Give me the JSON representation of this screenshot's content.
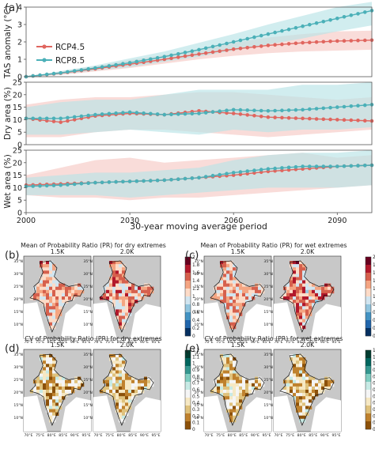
{
  "panel_labels": [
    "(a)",
    "(b)",
    "(c)",
    "(d)",
    "(e)"
  ],
  "legend": {
    "items": [
      "RCP4.5",
      "RCP8.5"
    ]
  },
  "colors": {
    "rcp45": "#e0665f",
    "rcp85": "#4bb0b8",
    "rcp45_band": "#f6c9c4",
    "rcp85_band": "#b9e3e6",
    "map_bg": "#c8c8c8",
    "ocean": "#ffffff"
  },
  "chart_data": [
    {
      "type": "line",
      "ylabel": "TAS anomaly (°C)",
      "xlabel": "30-year moving average period",
      "xlim": [
        2000,
        2100
      ],
      "ylim": [
        0,
        4
      ],
      "yticks": [
        "0",
        "1",
        "2",
        "3",
        "4"
      ],
      "xticks": [
        "2000",
        "2030",
        "2060",
        "2090"
      ],
      "series": [
        {
          "name": "RCP4.5",
          "x": [
            2000,
            2010,
            2020,
            2030,
            2040,
            2050,
            2060,
            2070,
            2080,
            2090,
            2100
          ],
          "values": [
            0.0,
            0.2,
            0.45,
            0.72,
            1.0,
            1.3,
            1.58,
            1.8,
            1.95,
            2.05,
            2.1
          ],
          "band_low": [
            0.0,
            0.1,
            0.3,
            0.5,
            0.75,
            1.0,
            1.2,
            1.35,
            1.45,
            1.5,
            1.55
          ],
          "band_high": [
            0.0,
            0.3,
            0.6,
            0.95,
            1.25,
            1.6,
            1.95,
            2.25,
            2.45,
            2.6,
            2.65
          ]
        },
        {
          "name": "RCP8.5",
          "x": [
            2000,
            2010,
            2020,
            2030,
            2040,
            2050,
            2060,
            2070,
            2080,
            2090,
            2100
          ],
          "values": [
            0.0,
            0.22,
            0.5,
            0.8,
            1.15,
            1.55,
            2.0,
            2.45,
            2.9,
            3.35,
            3.8
          ],
          "band_low": [
            0.0,
            0.12,
            0.35,
            0.55,
            0.85,
            1.15,
            1.5,
            1.85,
            2.2,
            2.6,
            2.95
          ],
          "band_high": [
            0.0,
            0.32,
            0.65,
            1.05,
            1.45,
            1.95,
            2.45,
            3.0,
            3.5,
            4.0,
            4.3
          ]
        }
      ]
    },
    {
      "type": "line",
      "ylabel": "Dry area (%)",
      "xlim": [
        2000,
        2100
      ],
      "ylim": [
        0,
        25
      ],
      "yticks": [
        "0",
        "5",
        "10",
        "15",
        "20",
        "25"
      ],
      "series": [
        {
          "name": "RCP4.5",
          "x": [
            2000,
            2010,
            2020,
            2030,
            2040,
            2050,
            2060,
            2070,
            2080,
            2090,
            2100
          ],
          "values": [
            10.5,
            9.0,
            11.5,
            12.5,
            12.0,
            13.5,
            12.5,
            11.0,
            10.5,
            10.0,
            9.5
          ],
          "band_low": [
            3,
            3,
            5,
            6,
            6,
            5,
            4,
            3,
            4,
            5,
            6
          ],
          "band_high": [
            16,
            18,
            19,
            19,
            20,
            21,
            21,
            20,
            19,
            18,
            19
          ]
        },
        {
          "name": "RCP8.5",
          "x": [
            2000,
            2010,
            2020,
            2030,
            2040,
            2050,
            2060,
            2070,
            2080,
            2090,
            2100
          ],
          "values": [
            10.5,
            10.5,
            12.0,
            13.0,
            12.0,
            12.5,
            14.0,
            13.5,
            14.0,
            15.0,
            16.0
          ],
          "band_low": [
            4,
            4,
            5,
            6,
            5,
            4,
            6,
            5,
            6,
            6,
            7
          ],
          "band_high": [
            15,
            17,
            18,
            18,
            20,
            22,
            22,
            22,
            24,
            24,
            25
          ]
        }
      ]
    },
    {
      "type": "line",
      "ylabel": "Wet area (%)",
      "xlim": [
        2000,
        2100
      ],
      "ylim": [
        0,
        25
      ],
      "yticks": [
        "0",
        "5",
        "10",
        "15",
        "20",
        "25"
      ],
      "series": [
        {
          "name": "RCP4.5",
          "x": [
            2000,
            2010,
            2020,
            2030,
            2040,
            2050,
            2060,
            2070,
            2080,
            2090,
            2100
          ],
          "values": [
            11.0,
            11.5,
            12.0,
            12.5,
            13.0,
            14.0,
            15.0,
            16.5,
            17.5,
            18.5,
            19.0
          ],
          "band_low": [
            7,
            6,
            6,
            5,
            6,
            6,
            7,
            8,
            9,
            10,
            11
          ],
          "band_high": [
            15,
            18,
            21,
            22,
            20,
            21,
            22,
            23,
            24,
            22,
            23
          ]
        },
        {
          "name": "RCP8.5",
          "x": [
            2000,
            2010,
            2020,
            2030,
            2040,
            2050,
            2060,
            2070,
            2080,
            2090,
            2100
          ],
          "values": [
            10.5,
            11.0,
            12.0,
            12.5,
            13.0,
            14.0,
            16.0,
            17.5,
            18.5,
            18.5,
            19.0
          ],
          "band_low": [
            7,
            7,
            7,
            6,
            7,
            8,
            9,
            10,
            10,
            10,
            11
          ],
          "band_high": [
            14,
            15,
            16,
            16,
            17,
            18,
            21,
            23,
            24,
            24,
            25
          ]
        }
      ]
    }
  ],
  "map_rows": [
    {
      "label": "(b)",
      "title": "Mean of Probability Ratio (PR) for dry extremes",
      "maps": [
        {
          "subtitle": "1.5K",
          "metric": "mean",
          "intensity": 0.55
        },
        {
          "subtitle": "2.0K",
          "metric": "mean",
          "intensity": 0.7
        }
      ],
      "colorbar": {
        "ticks": [
          "2",
          "1.8",
          "1.6",
          "1.4",
          "1.2",
          "1",
          "0.8",
          "0.6",
          "0.4",
          "0.2",
          "0"
        ],
        "palette": "diverging"
      }
    },
    {
      "label": "(c)",
      "title": "Mean of Probability Ratio (PR) for wet extremes",
      "maps": [
        {
          "subtitle": "1.5K",
          "metric": "mean",
          "intensity": 0.6
        },
        {
          "subtitle": "2.0K",
          "metric": "mean",
          "intensity": 0.75
        }
      ],
      "colorbar": {
        "ticks": [
          "2",
          "1.8",
          "1.6",
          "1.4",
          "1.2",
          "1",
          "0.8",
          "0.6",
          "0.4",
          "0.2",
          "0"
        ],
        "palette": "diverging"
      }
    },
    {
      "label": "(d)",
      "title": "CV of Probability Ratio (PR) for dry extremes",
      "maps": [
        {
          "subtitle": "1.5K",
          "metric": "cv",
          "intensity": 0.55
        },
        {
          "subtitle": "2.0K",
          "metric": "cv",
          "intensity": 0.3
        }
      ],
      "colorbar": {
        "ticks": [
          "1.2",
          "1.1",
          "1",
          "0.9",
          "0.8",
          "0.7",
          "0.6",
          "0.5",
          "0.4",
          "0.3",
          "0.2",
          "0.1",
          "0"
        ],
        "palette": "brbg"
      }
    },
    {
      "label": "(e)",
      "title": "CV of Probability Ratio (PR) for wet extremes",
      "maps": [
        {
          "subtitle": "1.5K",
          "metric": "cv",
          "intensity": 0.35
        },
        {
          "subtitle": "2.0K",
          "metric": "cv",
          "intensity": 0.3
        }
      ],
      "colorbar": {
        "ticks": [
          "1.2",
          "1.1",
          "1",
          "0.9",
          "0.8",
          "0.7",
          "0.6",
          "0.5",
          "0.4",
          "0.3",
          "0.2",
          "0.1",
          "0"
        ],
        "palette": "brbg"
      }
    }
  ],
  "map_lat_labels": [
    "35°N",
    "30°N",
    "25°N",
    "20°N",
    "15°N",
    "10°N"
  ],
  "map_lon_labels": [
    "70°E",
    "75°E",
    "80°E",
    "85°E",
    "90°E",
    "95°E"
  ]
}
